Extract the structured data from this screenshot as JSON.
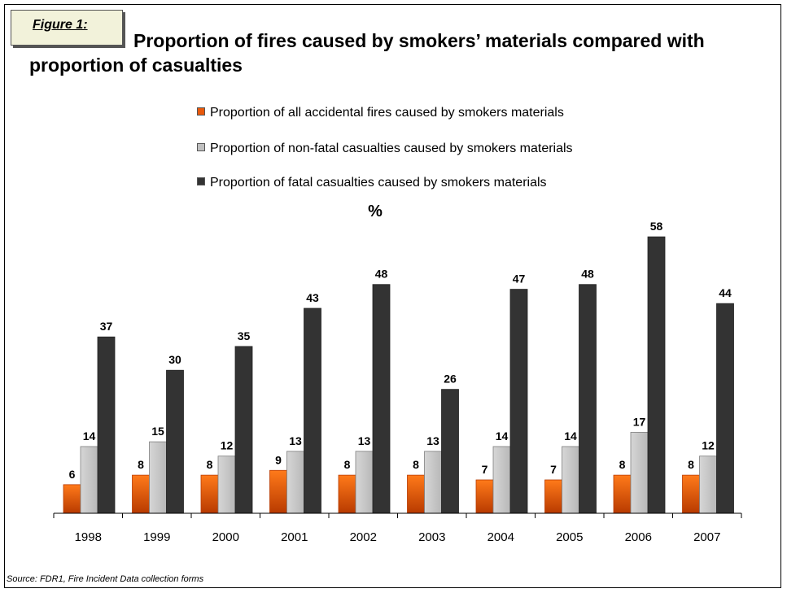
{
  "figure_label": "Figure 1:",
  "title": "Proportion of fires caused by smokers’ materials compared with proportion of casualties",
  "source": "Source: FDR1, Fire Incident Data collection forms",
  "chart_data": {
    "type": "bar",
    "title": "Proportion of fires caused by smokers’ materials compared with proportion of casualties",
    "ylabel": "%",
    "xlabel": "",
    "categories": [
      "1998",
      "1999",
      "2000",
      "2001",
      "2002",
      "2003",
      "2004",
      "2005",
      "2006",
      "2007"
    ],
    "series": [
      {
        "name": "Proportion of all accidental fires caused by smokers materials",
        "color": "#e8590c",
        "values": [
          6,
          8,
          8,
          9,
          8,
          8,
          7,
          7,
          8,
          8
        ]
      },
      {
        "name": "Proportion of non-fatal casualties caused by smokers materials",
        "color": "#c0c0c0",
        "values": [
          14,
          15,
          12,
          13,
          13,
          13,
          14,
          14,
          17,
          12
        ]
      },
      {
        "name": "Proportion of fatal casualties caused by smokers materials",
        "color": "#333333",
        "values": [
          37,
          30,
          35,
          43,
          48,
          26,
          47,
          48,
          58,
          44
        ]
      }
    ],
    "ylim": [
      0,
      58
    ],
    "grid": false,
    "legend": "top-center",
    "data_labels": true
  }
}
